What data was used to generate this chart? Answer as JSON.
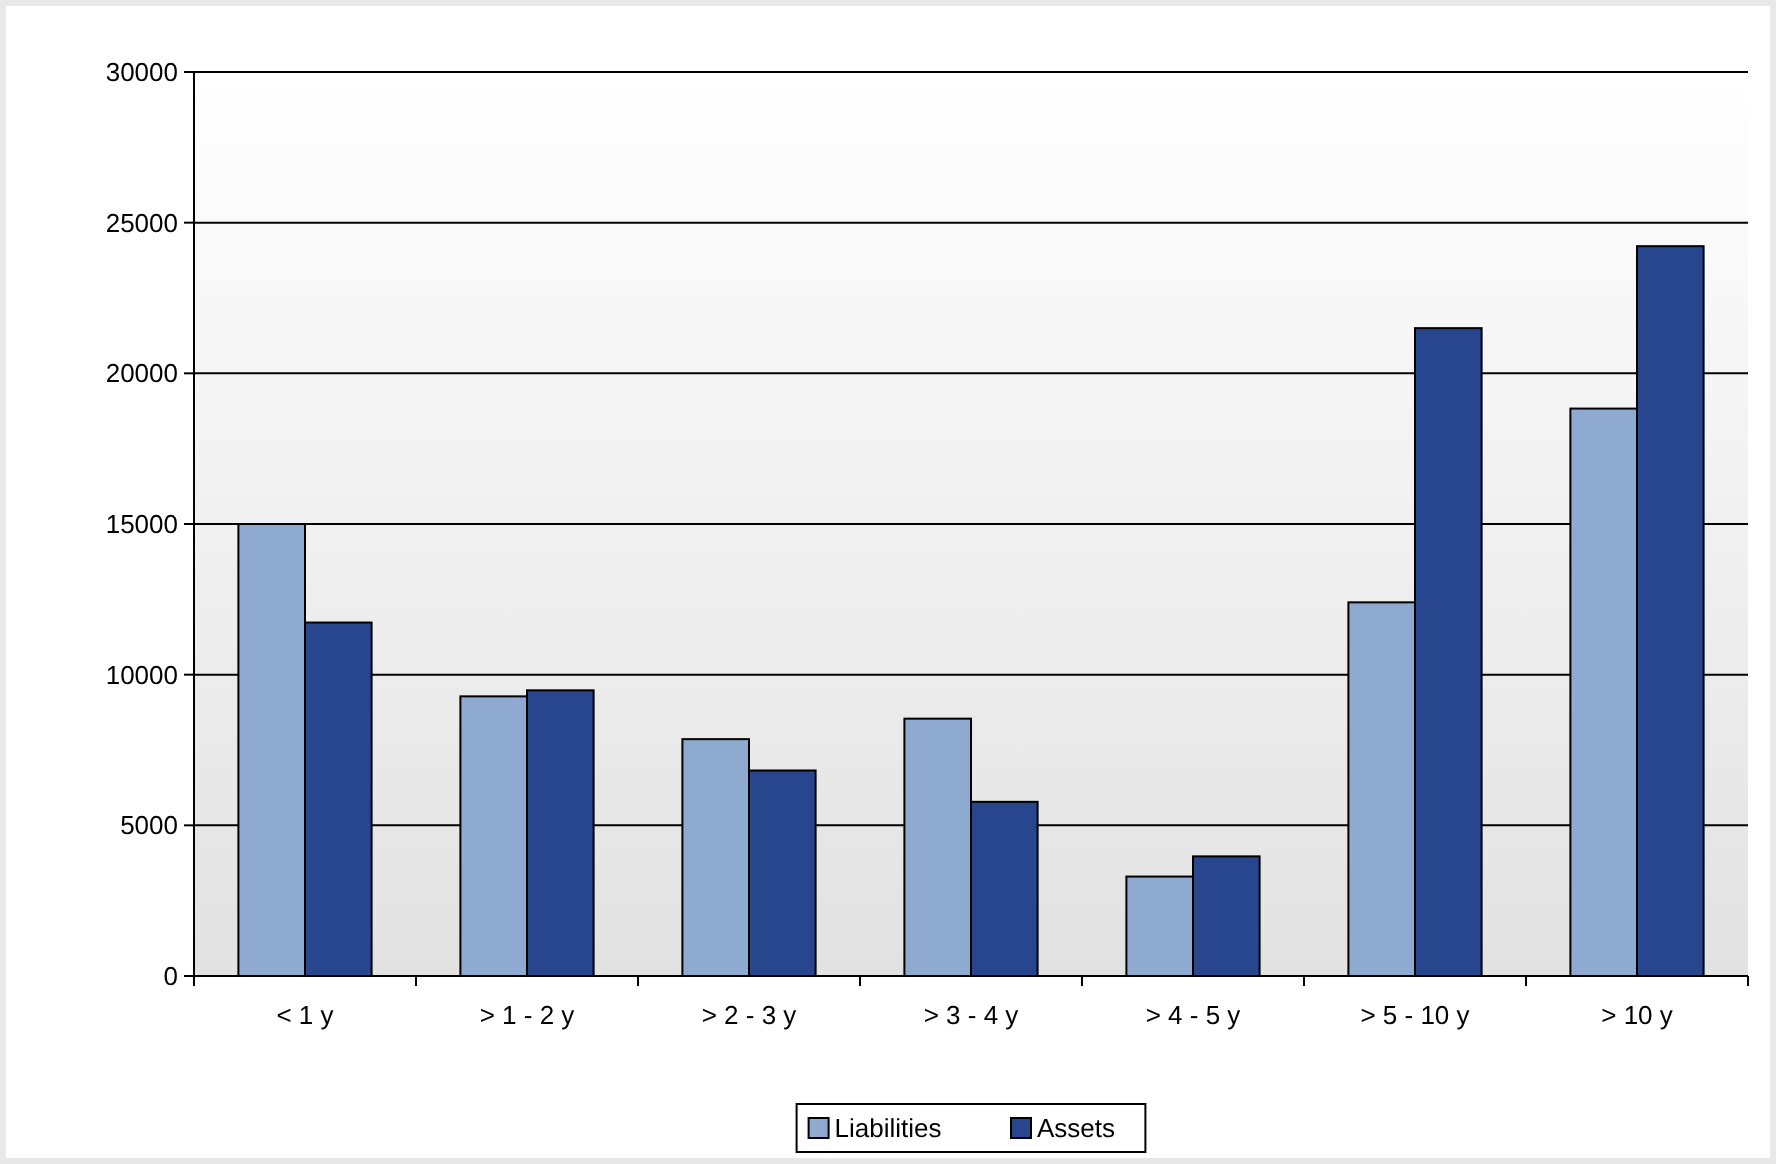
{
  "chart_data": {
    "type": "bar",
    "categories": [
      "< 1 y",
      "> 1 - 2 y",
      "> 2 - 3 y",
      "> 3 - 4 y",
      "> 4 - 5 y",
      "> 5 - 10 y",
      "> 10 y"
    ],
    "series": [
      {
        "name": "Liabilities",
        "color": "#8faad0",
        "values": [
          15000,
          9280,
          7860,
          8540,
          3300,
          12400,
          18830
        ]
      },
      {
        "name": "Assets",
        "color": "#27468d",
        "values": [
          11730,
          9480,
          6820,
          5780,
          3970,
          21500,
          24220
        ]
      }
    ],
    "ylim": [
      0,
      30000
    ],
    "yticks": [
      0,
      5000,
      10000,
      15000,
      20000,
      25000,
      30000
    ],
    "grid": "y",
    "legend": "bottom"
  }
}
